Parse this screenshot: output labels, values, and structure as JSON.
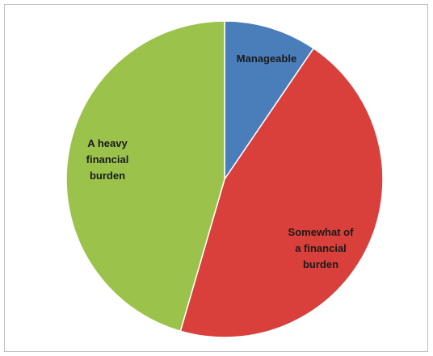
{
  "chart_data": {
    "type": "pie",
    "categories": [
      "Manageable",
      "Somewhat of a financial burden",
      "A heavy financial burden"
    ],
    "values": [
      9.5,
      45,
      45.5
    ],
    "colors": [
      "#4a7ebb",
      "#d9403b",
      "#9bc34b"
    ]
  }
}
